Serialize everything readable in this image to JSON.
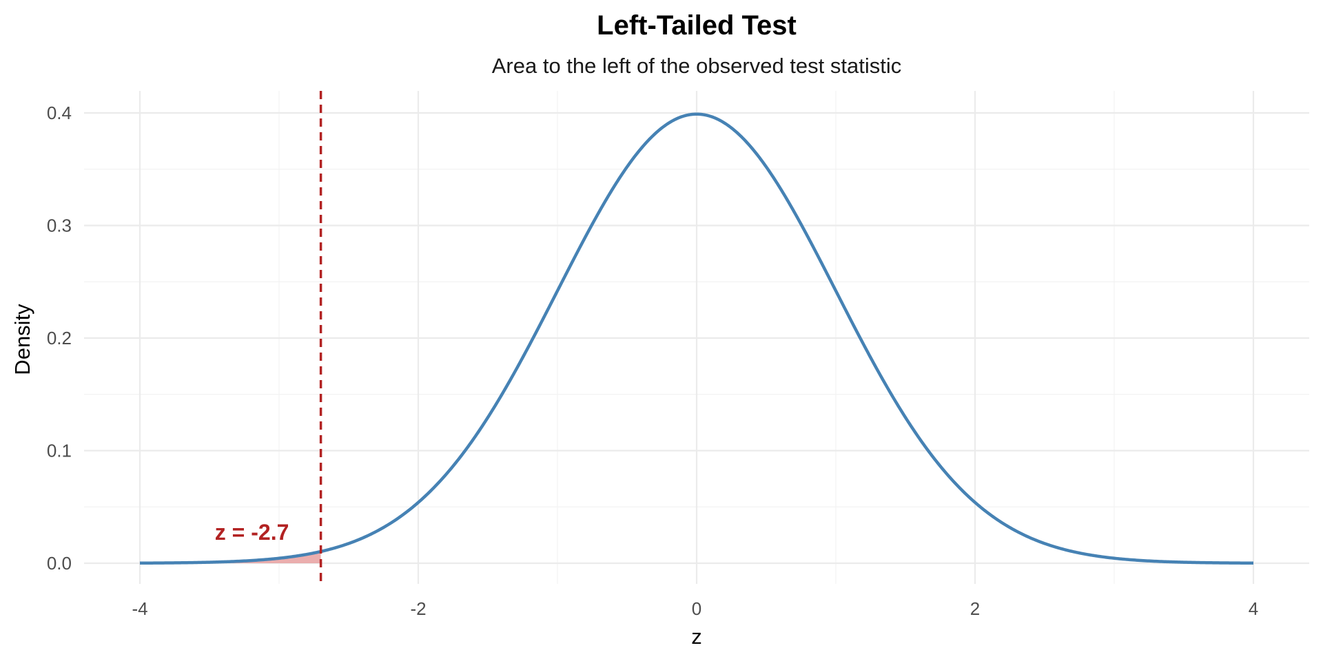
{
  "chart_data": {
    "type": "area",
    "title": "Left-Tailed Test",
    "subtitle": "Area to the left of the observed test statistic",
    "xlabel": "z",
    "ylabel": "Density",
    "xlim": [
      -4,
      4
    ],
    "ylim": [
      0,
      0.4
    ],
    "x_ticks": [
      -4,
      -2,
      0,
      2,
      4
    ],
    "x_tick_labels": [
      "-4",
      "-2",
      "0",
      "2",
      "4"
    ],
    "y_ticks": [
      0.0,
      0.1,
      0.2,
      0.3,
      0.4
    ],
    "y_tick_labels": [
      "0.0",
      "0.1",
      "0.2",
      "0.3",
      "0.4"
    ],
    "grid": true,
    "legend": "none",
    "series": [
      {
        "kind": "line",
        "distribution": "standard normal density",
        "x_range": [
          -4,
          4
        ],
        "color": "#4682B4"
      },
      {
        "kind": "shaded-area",
        "x_range": [
          -4,
          -2.7
        ],
        "color": "#E8A0A0"
      }
    ],
    "reference_line": {
      "x": -2.7,
      "style": "dashed",
      "color": "#B22222"
    },
    "annotation": {
      "text": "z = -2.7",
      "x": -2.7,
      "y": 0.028,
      "color": "#B22222"
    }
  }
}
